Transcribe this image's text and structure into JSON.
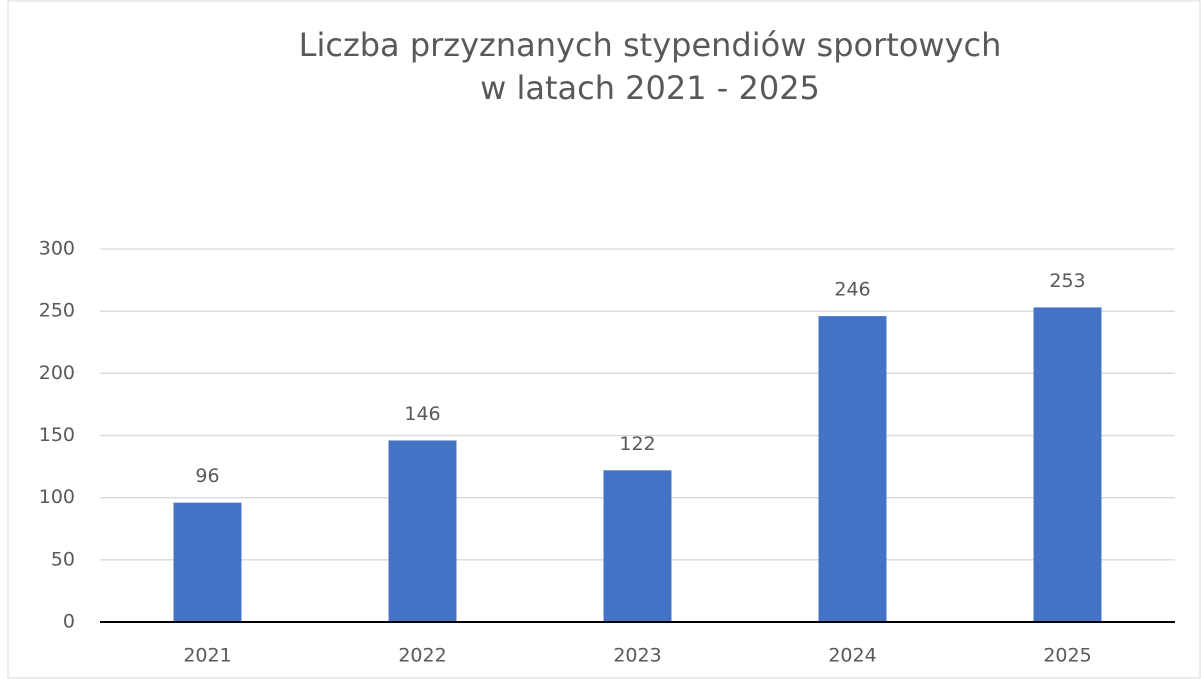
{
  "chart_data": {
    "type": "bar",
    "title": [
      "Liczba przyznanych stypendiów sportowych",
      "w latach 2021 - 2025"
    ],
    "categories": [
      "2021",
      "2022",
      "2023",
      "2024",
      "2025"
    ],
    "values": [
      96,
      146,
      122,
      246,
      253
    ],
    "color": "#4472c4",
    "ylim": [
      0,
      300
    ],
    "yticks": [
      0,
      50,
      100,
      150,
      200,
      250,
      300
    ],
    "grid": true
  }
}
